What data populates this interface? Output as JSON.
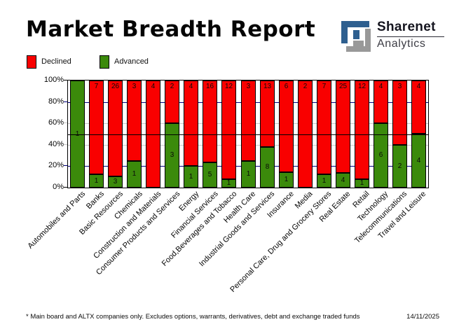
{
  "header": {
    "title": "Market Breadth Report"
  },
  "logo": {
    "name": "Sharenet",
    "sub": "Analytics",
    "icon": "sharenet-interlocked-s-mark",
    "blue": "#2E5F8F",
    "gray": "#999999"
  },
  "legend": [
    {
      "label": "Declined",
      "color": "#F90000"
    },
    {
      "label": "Advanced",
      "color": "#3B8A0B"
    }
  ],
  "chart_data": {
    "type": "bar",
    "stacking": "percent",
    "title": "Market Breadth Report",
    "categories": [
      "Automobiles and Parts",
      "Banks",
      "Basic Resources",
      "Chemicals",
      "Construction and Materials",
      "Consumer Products and Services",
      "Energy",
      "Financial Services",
      "Food,Beverages and Tobacco",
      "Health Care",
      "Industrial Goods and Services",
      "Insurance",
      "Media",
      "Personal Care, Drug and Grocery Stores",
      "Real Estate",
      "Retail",
      "Technology",
      "Telecommunications",
      "Travel and Leisure"
    ],
    "series": [
      {
        "name": "Advanced",
        "color": "#3B8A0B",
        "values": [
          1,
          1,
          3,
          1,
          0,
          3,
          1,
          5,
          1,
          1,
          8,
          1,
          0,
          1,
          4,
          1,
          6,
          2,
          4
        ]
      },
      {
        "name": "Declined",
        "color": "#F90000",
        "values": [
          0,
          7,
          26,
          3,
          4,
          2,
          4,
          16,
          12,
          3,
          13,
          6,
          2,
          7,
          25,
          12,
          4,
          3,
          4
        ]
      }
    ],
    "y_ticks": [
      {
        "label": "100%",
        "pct": 100,
        "tick_color": "#000000"
      },
      {
        "label": "80%",
        "pct": 80,
        "tick_color": "#000080"
      },
      {
        "label": "60%",
        "pct": 60,
        "tick_color": "#C8C8C8"
      },
      {
        "label": "40%",
        "pct": 40,
        "tick_color": "#C8C8C8"
      },
      {
        "label": "20%",
        "pct": 20,
        "tick_color": "#000080"
      },
      {
        "label": "0%",
        "pct": 0,
        "tick_color": "#000000"
      }
    ],
    "gridlines": [
      {
        "pct": 80,
        "color": "#000080",
        "front": false
      },
      {
        "pct": 60,
        "color": "#C8C8C8",
        "front": false
      },
      {
        "pct": 50,
        "color": "#000000",
        "front": true
      },
      {
        "pct": 40,
        "color": "#C8C8C8",
        "front": false
      },
      {
        "pct": 20,
        "color": "#000080",
        "front": false
      }
    ],
    "ylim": [
      0,
      100
    ],
    "legend_position": "top-left"
  },
  "footer": {
    "note": "* Main board and ALTX companies only. Excludes options, warrants, derivatives, debt and exchange traded funds",
    "date": "14/11/2025"
  }
}
